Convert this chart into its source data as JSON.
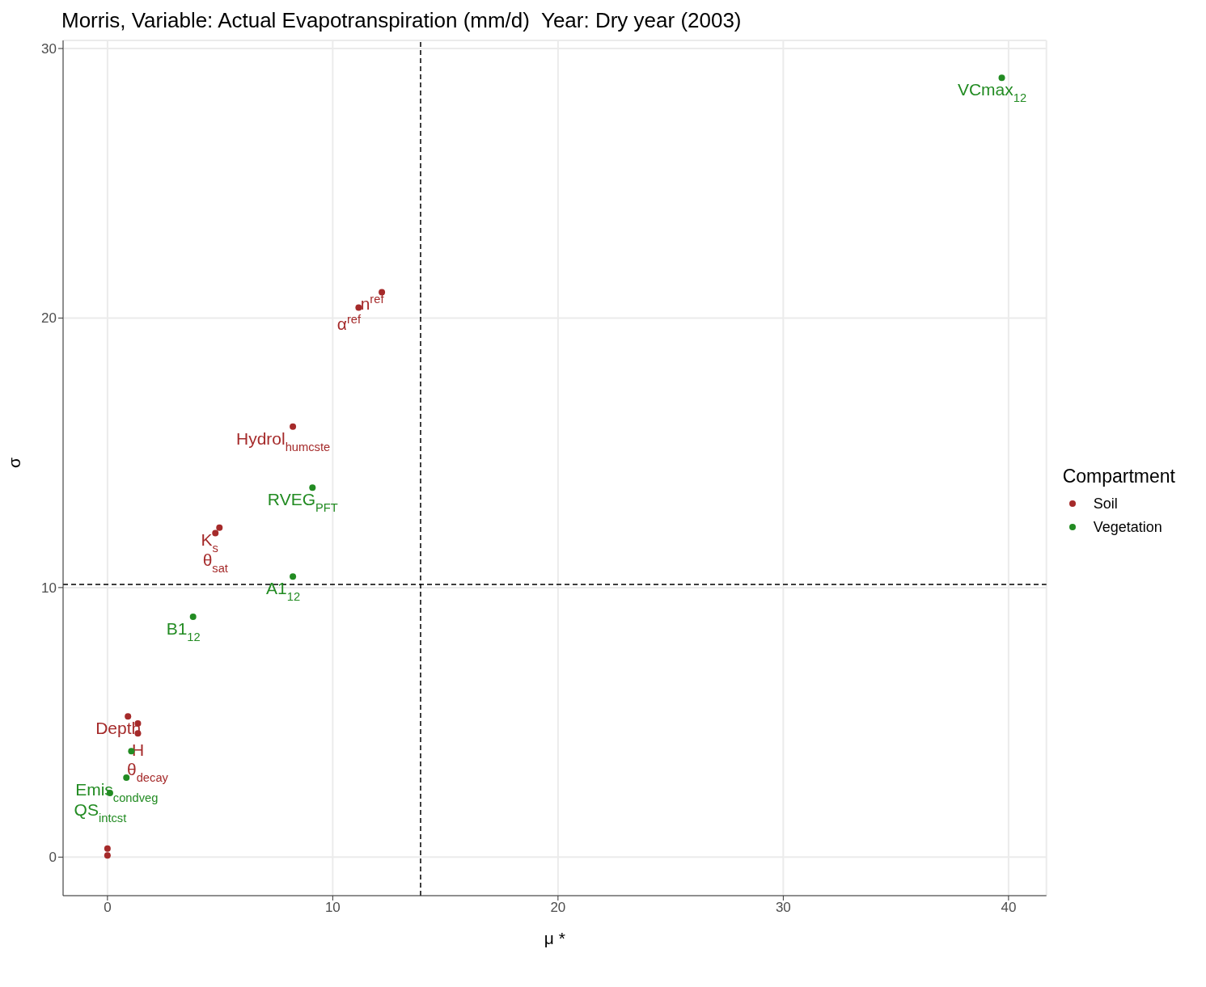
{
  "chart_data": {
    "type": "scatter",
    "title": "Morris, Variable: Actual Evapotranspiration (mm/d)  Year: Dry year (2003)",
    "xlabel": "μ *",
    "ylabel": "σ",
    "legend_title": "Compartment",
    "xlim": [
      -1.97,
      41.68
    ],
    "ylim": [
      -1.43,
      30.3
    ],
    "xticks": [
      0,
      10,
      20,
      30,
      40
    ],
    "yticks": [
      0,
      10,
      20,
      30
    ],
    "grid": true,
    "legend": "right",
    "marker": "circle",
    "ref_lines": [
      {
        "axis": "x",
        "value": 13.9,
        "line_style": "dashed",
        "color": "#000000"
      },
      {
        "axis": "y",
        "value": 10.12,
        "line_style": "dashed",
        "color": "#000000"
      }
    ],
    "annotations": [
      {
        "text": "VCmax$_{12}$",
        "x": 39.7,
        "y": 28.91
      },
      {
        "text": "n$^{ref}$",
        "x": 12.18,
        "y": 20.96
      },
      {
        "text": "α$^{ref}$",
        "x": 11.15,
        "y": 20.39
      },
      {
        "text": "Hydrol$_{humcste}$",
        "x": 8.23,
        "y": 15.97
      },
      {
        "text": "RVEG$_{PFT}$",
        "x": 9.1,
        "y": 13.71
      },
      {
        "text": "K$_{s}$",
        "x": 4.97,
        "y": 12.22
      },
      {
        "text": "θ$_{sat}$",
        "x": 4.79,
        "y": 12.02
      },
      {
        "text": "A1$_{12}$",
        "x": 8.23,
        "y": 10.41
      },
      {
        "text": "B1$_{12}$",
        "x": 3.8,
        "y": 8.92
      },
      {
        "text": "Depth",
        "x": 0.91,
        "y": 5.22
      },
      {
        "text": "H",
        "x": 1.35,
        "y": 4.96
      },
      {
        "text": "θ$_{decay}$",
        "x": 1.35,
        "y": 4.59
      },
      {
        "text": "Emis$_{condveg}$",
        "x": 0.84,
        "y": 2.95
      },
      {
        "text": "QS$_{intcst}$",
        "x": 0.11,
        "y": 2.38
      }
    ],
    "series": [
      {
        "name": "Soil",
        "color": "#a52a2a",
        "x": [
          12.18,
          11.15,
          8.23,
          4.97,
          4.79,
          0.91,
          1.35,
          1.35,
          0,
          0
        ],
        "values": [
          20.96,
          20.39,
          15.97,
          12.22,
          12.02,
          5.22,
          4.96,
          4.59,
          0.32,
          0.06
        ]
      },
      {
        "name": "Vegetation",
        "color": "#228b22",
        "x": [
          39.7,
          9.1,
          8.23,
          3.8,
          1.06,
          0.84,
          0.11
        ],
        "values": [
          28.91,
          13.71,
          10.41,
          8.92,
          3.93,
          2.95,
          2.38
        ]
      }
    ]
  }
}
